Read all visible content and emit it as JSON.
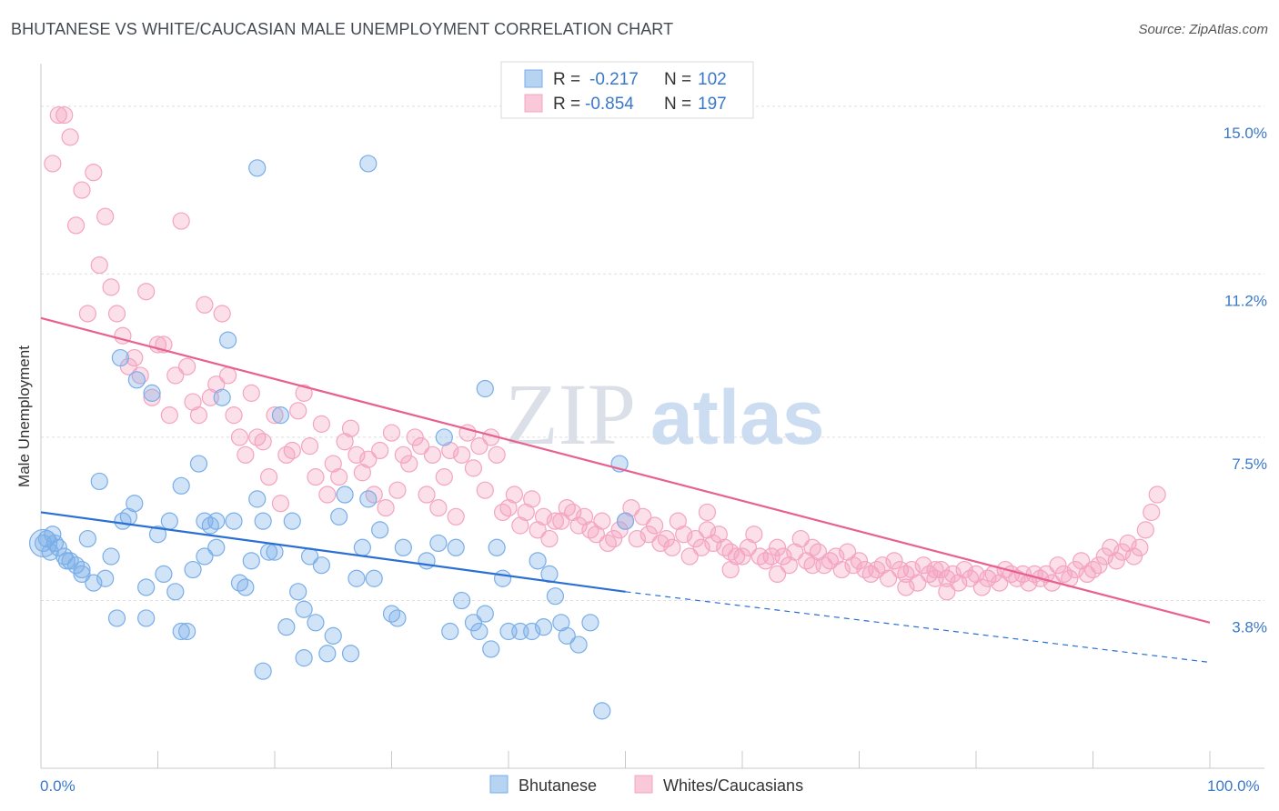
{
  "title": "BHUTANESE VS WHITE/CAUCASIAN MALE UNEMPLOYMENT CORRELATION CHART",
  "source": "Source: ZipAtlas.com",
  "watermark": {
    "zip": "ZIP",
    "atlas": "atlas"
  },
  "chart_data": {
    "type": "scatter",
    "ylabel": "Male Unemployment",
    "x_ticks": [
      "0.0%",
      "100.0%"
    ],
    "y_ticks": [
      {
        "value": 15.0,
        "label": "15.0%"
      },
      {
        "value": 11.2,
        "label": "11.2%"
      },
      {
        "value": 7.5,
        "label": "7.5%"
      },
      {
        "value": 3.8,
        "label": "3.8%"
      }
    ],
    "xlim": [
      0,
      100
    ],
    "ylim": [
      0,
      15.8
    ],
    "grid": true,
    "legend_placement": "top-center",
    "legend": [
      {
        "r_label": "R =",
        "r_value": "-0.217",
        "n_label": "N =",
        "n_value": "102"
      },
      {
        "r_label": "R =",
        "r_value": "-0.854",
        "n_label": "N =",
        "n_value": "197"
      }
    ],
    "series": [
      {
        "name": "Bhutanese",
        "color": "#7aaee8",
        "line_color": "#2a6fd4",
        "trend": {
          "x": [
            0,
            50
          ],
          "y": [
            5.8,
            4.0
          ],
          "dashed_to": [
            100,
            2.4
          ]
        },
        "points": [
          [
            0.2,
            5.1
          ],
          [
            0.5,
            5.2
          ],
          [
            1.0,
            5.3
          ],
          [
            1.5,
            5.0
          ],
          [
            2.0,
            4.8
          ],
          [
            2.5,
            4.7
          ],
          [
            3.0,
            4.6
          ],
          [
            3.5,
            4.4
          ],
          [
            4.0,
            5.2
          ],
          [
            4.5,
            4.2
          ],
          [
            5.0,
            6.5
          ],
          [
            5.5,
            4.3
          ],
          [
            6.0,
            4.8
          ],
          [
            6.5,
            3.4
          ],
          [
            7.0,
            5.6
          ],
          [
            7.5,
            5.7
          ],
          [
            8.0,
            6.0
          ],
          [
            9.0,
            4.1
          ],
          [
            9.5,
            8.5
          ],
          [
            10.0,
            5.3
          ],
          [
            10.5,
            4.4
          ],
          [
            11.0,
            5.6
          ],
          [
            11.5,
            4.0
          ],
          [
            12.0,
            6.4
          ],
          [
            12.5,
            3.1
          ],
          [
            13.0,
            4.5
          ],
          [
            13.5,
            6.9
          ],
          [
            14.0,
            5.6
          ],
          [
            14.5,
            5.5
          ],
          [
            15.0,
            5.6
          ],
          [
            15.5,
            8.4
          ],
          [
            16.0,
            9.7
          ],
          [
            16.5,
            5.6
          ],
          [
            17.0,
            4.2
          ],
          [
            17.5,
            4.1
          ],
          [
            18.0,
            4.7
          ],
          [
            18.5,
            6.1
          ],
          [
            19.0,
            5.6
          ],
          [
            19.5,
            4.9
          ],
          [
            20.0,
            4.9
          ],
          [
            20.5,
            8.0
          ],
          [
            21.0,
            3.2
          ],
          [
            21.5,
            5.6
          ],
          [
            22.0,
            4.0
          ],
          [
            22.5,
            3.6
          ],
          [
            23.0,
            4.8
          ],
          [
            23.5,
            3.3
          ],
          [
            24.0,
            4.6
          ],
          [
            24.5,
            2.6
          ],
          [
            25.0,
            3.0
          ],
          [
            25.5,
            5.7
          ],
          [
            26.0,
            6.2
          ],
          [
            26.5,
            2.6
          ],
          [
            27.0,
            4.3
          ],
          [
            27.5,
            5.0
          ],
          [
            28.0,
            6.1
          ],
          [
            28.5,
            4.3
          ],
          [
            29.0,
            5.4
          ],
          [
            30.0,
            3.5
          ],
          [
            30.5,
            3.4
          ],
          [
            31.0,
            5.0
          ],
          [
            33.0,
            4.7
          ],
          [
            34.0,
            5.1
          ],
          [
            34.5,
            7.5
          ],
          [
            35.0,
            3.1
          ],
          [
            35.5,
            5.0
          ],
          [
            36.0,
            3.8
          ],
          [
            37.0,
            3.3
          ],
          [
            37.5,
            3.1
          ],
          [
            38.0,
            3.5
          ],
          [
            38.5,
            2.7
          ],
          [
            39.0,
            5.0
          ],
          [
            39.5,
            4.3
          ],
          [
            40.0,
            3.1
          ],
          [
            41.0,
            3.1
          ],
          [
            42.0,
            3.1
          ],
          [
            42.5,
            4.7
          ],
          [
            43.0,
            3.2
          ],
          [
            43.5,
            4.4
          ],
          [
            44.0,
            3.9
          ],
          [
            44.5,
            3.3
          ],
          [
            45.0,
            3.0
          ],
          [
            46.0,
            2.8
          ],
          [
            47.0,
            3.3
          ],
          [
            48.0,
            1.3
          ],
          [
            49.5,
            6.9
          ],
          [
            50.0,
            5.6
          ],
          [
            18.5,
            13.6
          ],
          [
            28.0,
            13.7
          ],
          [
            38.0,
            8.6
          ],
          [
            0.8,
            4.9
          ],
          [
            1.2,
            5.1
          ],
          [
            2.2,
            4.7
          ],
          [
            3.5,
            4.5
          ],
          [
            6.8,
            9.3
          ],
          [
            8.2,
            8.8
          ],
          [
            9.0,
            3.4
          ],
          [
            12.0,
            3.1
          ],
          [
            14.0,
            4.8
          ],
          [
            15.0,
            5.0
          ],
          [
            19.0,
            2.2
          ],
          [
            22.5,
            2.5
          ]
        ]
      },
      {
        "name": "Whites/Caucasians",
        "color": "#f4a4c0",
        "line_color": "#e8608f",
        "trend": {
          "x": [
            0,
            100
          ],
          "y": [
            10.2,
            3.3
          ]
        },
        "points": [
          [
            1.0,
            13.7
          ],
          [
            1.5,
            14.8
          ],
          [
            2.0,
            14.8
          ],
          [
            2.5,
            14.3
          ],
          [
            3.0,
            12.3
          ],
          [
            3.5,
            13.1
          ],
          [
            4.0,
            10.3
          ],
          [
            4.5,
            13.5
          ],
          [
            5.0,
            11.4
          ],
          [
            5.5,
            12.5
          ],
          [
            6.0,
            10.9
          ],
          [
            6.5,
            10.3
          ],
          [
            7.0,
            9.8
          ],
          [
            7.5,
            9.1
          ],
          [
            8.0,
            9.3
          ],
          [
            8.5,
            8.9
          ],
          [
            9.0,
            10.8
          ],
          [
            9.5,
            8.4
          ],
          [
            10.0,
            9.6
          ],
          [
            10.5,
            9.6
          ],
          [
            11.0,
            8.0
          ],
          [
            11.5,
            8.9
          ],
          [
            12.0,
            12.4
          ],
          [
            12.5,
            9.1
          ],
          [
            13.0,
            8.3
          ],
          [
            13.5,
            8.0
          ],
          [
            14.0,
            10.5
          ],
          [
            14.5,
            8.4
          ],
          [
            15.0,
            8.7
          ],
          [
            15.5,
            10.3
          ],
          [
            16.0,
            8.9
          ],
          [
            16.5,
            8.0
          ],
          [
            17.0,
            7.5
          ],
          [
            17.5,
            7.1
          ],
          [
            18.0,
            8.5
          ],
          [
            18.5,
            7.5
          ],
          [
            19.0,
            7.4
          ],
          [
            19.5,
            6.6
          ],
          [
            20.0,
            8.0
          ],
          [
            20.5,
            6.0
          ],
          [
            21.0,
            7.1
          ],
          [
            21.5,
            7.2
          ],
          [
            22.0,
            8.1
          ],
          [
            22.5,
            8.5
          ],
          [
            23.0,
            7.3
          ],
          [
            23.5,
            6.6
          ],
          [
            24.0,
            7.8
          ],
          [
            24.5,
            6.2
          ],
          [
            25.0,
            6.9
          ],
          [
            25.5,
            6.6
          ],
          [
            26.0,
            7.4
          ],
          [
            26.5,
            7.7
          ],
          [
            27.0,
            7.1
          ],
          [
            27.5,
            6.7
          ],
          [
            28.0,
            7.0
          ],
          [
            28.5,
            6.2
          ],
          [
            29.0,
            7.2
          ],
          [
            29.5,
            5.9
          ],
          [
            30.0,
            7.6
          ],
          [
            30.5,
            6.3
          ],
          [
            31.0,
            7.1
          ],
          [
            31.5,
            6.9
          ],
          [
            32.0,
            7.5
          ],
          [
            32.5,
            7.3
          ],
          [
            33.0,
            6.2
          ],
          [
            33.5,
            7.1
          ],
          [
            34.0,
            5.9
          ],
          [
            34.5,
            6.6
          ],
          [
            35.0,
            7.2
          ],
          [
            35.5,
            5.7
          ],
          [
            36.0,
            7.1
          ],
          [
            36.5,
            7.6
          ],
          [
            37.0,
            6.8
          ],
          [
            37.5,
            7.3
          ],
          [
            38.0,
            6.3
          ],
          [
            38.5,
            7.5
          ],
          [
            39.0,
            7.1
          ],
          [
            39.5,
            5.8
          ],
          [
            40.0,
            5.9
          ],
          [
            40.5,
            6.2
          ],
          [
            41.0,
            5.5
          ],
          [
            41.5,
            5.8
          ],
          [
            42.0,
            6.1
          ],
          [
            42.5,
            5.4
          ],
          [
            43.0,
            5.7
          ],
          [
            43.5,
            5.2
          ],
          [
            44.0,
            5.6
          ],
          [
            44.5,
            5.6
          ],
          [
            45.0,
            5.9
          ],
          [
            45.5,
            5.8
          ],
          [
            46.0,
            5.5
          ],
          [
            46.5,
            5.7
          ],
          [
            47.0,
            5.4
          ],
          [
            47.5,
            5.3
          ],
          [
            48.0,
            5.6
          ],
          [
            48.5,
            5.1
          ],
          [
            49.0,
            5.2
          ],
          [
            49.5,
            5.4
          ],
          [
            50.0,
            5.6
          ],
          [
            50.5,
            5.9
          ],
          [
            51.0,
            5.2
          ],
          [
            51.5,
            5.7
          ],
          [
            52.0,
            5.3
          ],
          [
            52.5,
            5.5
          ],
          [
            53.0,
            5.1
          ],
          [
            53.5,
            5.2
          ],
          [
            54.0,
            5.0
          ],
          [
            54.5,
            5.6
          ],
          [
            55.0,
            5.3
          ],
          [
            55.5,
            4.8
          ],
          [
            56.0,
            5.2
          ],
          [
            56.5,
            5.0
          ],
          [
            57.0,
            5.4
          ],
          [
            57.5,
            5.1
          ],
          [
            58.0,
            5.3
          ],
          [
            58.5,
            5.0
          ],
          [
            59.0,
            4.9
          ],
          [
            59.5,
            4.8
          ],
          [
            60.0,
            4.8
          ],
          [
            60.5,
            5.0
          ],
          [
            61.0,
            5.3
          ],
          [
            61.5,
            4.8
          ],
          [
            62.0,
            4.7
          ],
          [
            62.5,
            4.8
          ],
          [
            63.0,
            5.0
          ],
          [
            63.5,
            4.8
          ],
          [
            64.0,
            4.6
          ],
          [
            64.5,
            4.9
          ],
          [
            65.0,
            5.2
          ],
          [
            65.5,
            4.7
          ],
          [
            66.0,
            4.6
          ],
          [
            66.5,
            4.9
          ],
          [
            67.0,
            4.6
          ],
          [
            67.5,
            4.7
          ],
          [
            68.0,
            4.8
          ],
          [
            68.5,
            4.5
          ],
          [
            69.0,
            4.9
          ],
          [
            69.5,
            4.6
          ],
          [
            70.0,
            4.7
          ],
          [
            70.5,
            4.5
          ],
          [
            71.0,
            4.4
          ],
          [
            71.5,
            4.5
          ],
          [
            72.0,
            4.6
          ],
          [
            72.5,
            4.3
          ],
          [
            73.0,
            4.7
          ],
          [
            73.5,
            4.5
          ],
          [
            74.0,
            4.4
          ],
          [
            74.5,
            4.5
          ],
          [
            75.0,
            4.2
          ],
          [
            75.5,
            4.6
          ],
          [
            76.0,
            4.4
          ],
          [
            76.5,
            4.3
          ],
          [
            77.0,
            4.5
          ],
          [
            77.5,
            4.3
          ],
          [
            78.0,
            4.4
          ],
          [
            78.5,
            4.2
          ],
          [
            79.0,
            4.5
          ],
          [
            79.5,
            4.3
          ],
          [
            80.0,
            4.4
          ],
          [
            80.5,
            4.1
          ],
          [
            81.0,
            4.3
          ],
          [
            81.5,
            4.4
          ],
          [
            82.0,
            4.2
          ],
          [
            82.5,
            4.5
          ],
          [
            83.0,
            4.4
          ],
          [
            83.5,
            4.3
          ],
          [
            84.0,
            4.4
          ],
          [
            84.5,
            4.2
          ],
          [
            85.0,
            4.4
          ],
          [
            85.5,
            4.3
          ],
          [
            86.0,
            4.4
          ],
          [
            86.5,
            4.2
          ],
          [
            87.0,
            4.6
          ],
          [
            87.5,
            4.4
          ],
          [
            88.0,
            4.3
          ],
          [
            88.5,
            4.5
          ],
          [
            89.0,
            4.7
          ],
          [
            89.5,
            4.4
          ],
          [
            90.0,
            4.5
          ],
          [
            90.5,
            4.6
          ],
          [
            91.0,
            4.8
          ],
          [
            91.5,
            5.0
          ],
          [
            92.0,
            4.7
          ],
          [
            92.5,
            4.9
          ],
          [
            93.0,
            5.1
          ],
          [
            93.5,
            4.8
          ],
          [
            94.0,
            5.0
          ],
          [
            94.5,
            5.4
          ],
          [
            95.0,
            5.8
          ],
          [
            95.5,
            6.2
          ],
          [
            76.5,
            4.5
          ],
          [
            77.5,
            4.0
          ],
          [
            74.0,
            4.1
          ],
          [
            63.0,
            4.4
          ],
          [
            59.0,
            4.5
          ],
          [
            57.0,
            5.8
          ],
          [
            66.0,
            5.0
          ]
        ]
      }
    ]
  },
  "bottom_legend": [
    "Bhutanese",
    "Whites/Caucasians"
  ]
}
